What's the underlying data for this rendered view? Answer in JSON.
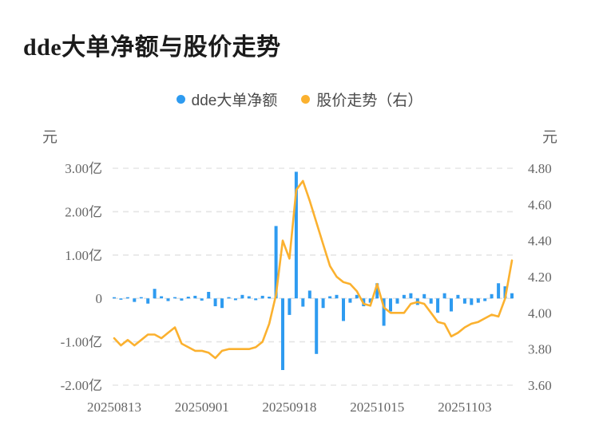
{
  "title": {
    "text": "dde大单净额与股价走势"
  },
  "legend": {
    "items": [
      {
        "label": "dde大单净额",
        "color": "#2e9bf0"
      },
      {
        "label": "股价走势（右）",
        "color": "#fbb12f"
      }
    ]
  },
  "chart_data": {
    "type": "combo-bar-line",
    "title": "dde大单净额与股价走势",
    "num_points": 60,
    "x_axis": {
      "tick_labels": [
        "20250813",
        "20250901",
        "20250918",
        "20251015",
        "20251103"
      ],
      "tick_indices": [
        0,
        13,
        26,
        39,
        52
      ]
    },
    "left_axis": {
      "unit": "元",
      "tick_labels": [
        "3.00亿",
        "2.00亿",
        "1.00亿",
        "0",
        "-1.00亿",
        "-2.00亿"
      ],
      "tick_values": [
        3,
        2,
        1,
        0,
        -1,
        -2
      ],
      "range": [
        -2,
        3
      ]
    },
    "right_axis": {
      "unit": "元",
      "tick_labels": [
        "4.80",
        "4.60",
        "4.40",
        "4.20",
        "4.00",
        "3.80",
        "3.60"
      ],
      "tick_values": [
        4.8,
        4.6,
        4.4,
        4.2,
        4.0,
        3.8,
        3.6
      ],
      "range": [
        3.6,
        4.8
      ]
    },
    "grid": "dashed-horizontal",
    "legend_position": "top-center",
    "series": [
      {
        "name": "dde大单净额",
        "type": "bar",
        "axis": "left",
        "unit": "亿",
        "color": "#2e9bf0",
        "values": [
          0.02,
          -0.03,
          0.02,
          -0.08,
          0.03,
          -0.12,
          0.22,
          0.05,
          -0.06,
          0.03,
          -0.05,
          0.04,
          0.06,
          -0.05,
          0.15,
          -0.18,
          -0.22,
          0.03,
          -0.04,
          0.08,
          0.05,
          -0.04,
          0.06,
          0.04,
          1.67,
          -1.65,
          -0.38,
          2.92,
          -0.19,
          0.18,
          -1.28,
          -0.22,
          0.05,
          0.08,
          -0.52,
          -0.1,
          0.08,
          -0.18,
          -0.1,
          0.35,
          -0.63,
          -0.3,
          -0.12,
          0.08,
          0.12,
          -0.15,
          0.1,
          -0.12,
          -0.33,
          0.12,
          -0.3,
          0.08,
          -0.12,
          -0.15,
          -0.1,
          -0.06,
          0.1,
          0.35,
          0.28,
          0.12
        ]
      },
      {
        "name": "股价走势（右）",
        "type": "line",
        "axis": "right",
        "color": "#fbb12f",
        "values": [
          3.86,
          3.82,
          3.85,
          3.82,
          3.85,
          3.88,
          3.88,
          3.86,
          3.89,
          3.92,
          3.83,
          3.81,
          3.79,
          3.79,
          3.78,
          3.75,
          3.79,
          3.8,
          3.8,
          3.8,
          3.8,
          3.81,
          3.84,
          3.94,
          4.1,
          4.4,
          4.3,
          4.68,
          4.73,
          4.62,
          4.5,
          4.38,
          4.26,
          4.2,
          4.17,
          4.16,
          4.12,
          4.05,
          4.04,
          4.16,
          4.03,
          4.0,
          4.0,
          4.0,
          4.05,
          4.06,
          4.05,
          4.0,
          3.95,
          3.94,
          3.87,
          3.89,
          3.92,
          3.94,
          3.95,
          3.97,
          3.99,
          3.98,
          4.08,
          4.29
        ]
      }
    ]
  }
}
